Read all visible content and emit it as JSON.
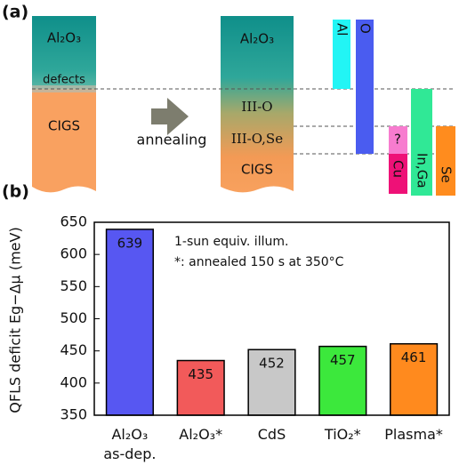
{
  "panel_a": {
    "label": "(a)",
    "before": {
      "top": "Al₂O₃",
      "interface": "defects",
      "bottom": "CIGS"
    },
    "process": "annealing",
    "after": {
      "layers": [
        "Al₂O₃",
        "III-O",
        "III-O,Se",
        "CIGS"
      ]
    },
    "elements": [
      "Al",
      "O",
      "?",
      "Cu",
      "In,Ga",
      "Se"
    ]
  },
  "chart_data": {
    "type": "bar",
    "panel_label": "(b)",
    "y_label": "QFLS deficit Eg−Δμ (meV)",
    "annotations": [
      "1-sun equiv. illum.",
      "*: annealed 150 s at 350°C"
    ],
    "categories": [
      "Al₂O₃\nas-dep.",
      "Al₂O₃*",
      "CdS",
      "TiO₂*",
      "Plasma*"
    ],
    "values": [
      639,
      435,
      452,
      457,
      461
    ],
    "colors": [
      "#5757f2",
      "#f25a5a",
      "#c8c8c8",
      "#3ce83c",
      "#ff8a1e"
    ],
    "ylim": [
      350,
      650
    ],
    "yticks": [
      350,
      400,
      450,
      500,
      550,
      600,
      650
    ],
    "grid": false
  }
}
